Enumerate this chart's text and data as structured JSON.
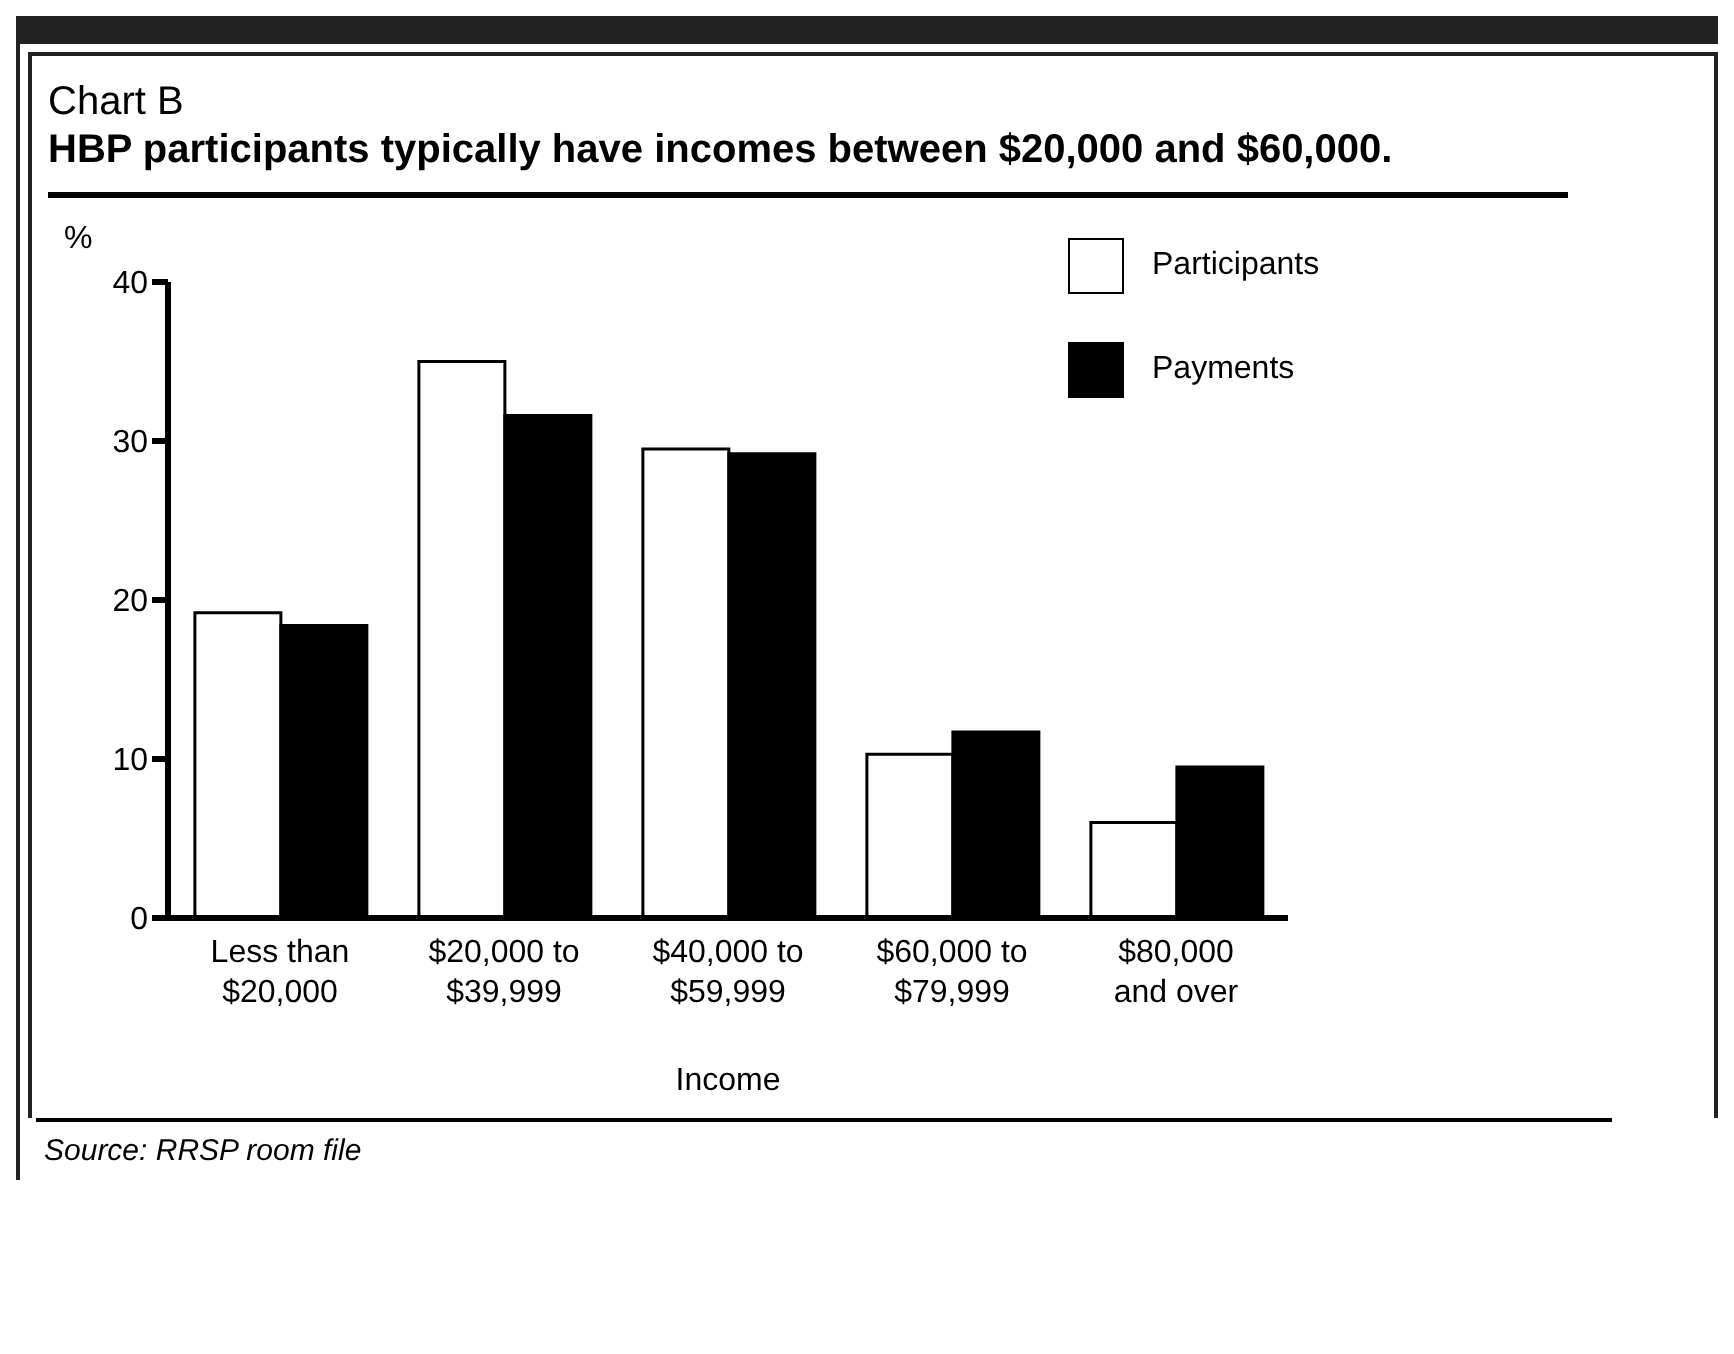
{
  "chart_data": {
    "type": "bar",
    "title": "Chart B",
    "subtitle": "HBP participants typically have incomes between $20,000 and $60,000.",
    "ylabel": "%",
    "xlabel": "Income",
    "categories": [
      "Less than\n$20,000",
      "$20,000 to\n$39,999",
      "$40,000 to\n$59,999",
      "$60,000 to\n$79,999",
      "$80,000\nand over"
    ],
    "series": [
      {
        "name": "Participants",
        "color": "#ffffff",
        "values": [
          19.2,
          35.0,
          29.5,
          10.3,
          6.0
        ]
      },
      {
        "name": "Payments",
        "color": "#000000",
        "values": [
          18.4,
          31.6,
          29.2,
          11.7,
          9.5
        ]
      }
    ],
    "ylim": [
      0,
      40
    ],
    "yticks": [
      0,
      10,
      20,
      30,
      40
    ],
    "grid": false,
    "legend": "top right",
    "annotations": [
      "Source: RRSP room file"
    ]
  }
}
